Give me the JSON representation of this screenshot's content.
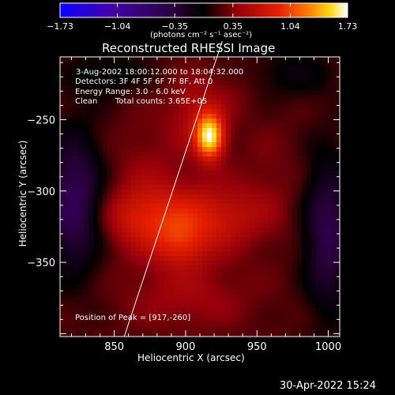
{
  "title": "Reconstructed RHESSI Image",
  "colorbar": {
    "unit_label": "(photons cm⁻² s⁻¹ asec⁻²)",
    "range": [
      -1.73,
      1.73
    ],
    "ticks": [
      "-1.73",
      "-1.04",
      "-0.35",
      "0.35",
      "1.04",
      "1.73"
    ]
  },
  "info": {
    "time_range": "3-Aug-2002 18:00:12.000 to 18:04:32.000",
    "detectors": "Detectors: 3F 4F 5F 6F 7F 8F, Att 0",
    "energy": "Energy Range: 3.0 - 6.0 keV",
    "method": "Clean",
    "counts": "Total counts: 3.65E+05",
    "peak": "Position of Peak = [917,-260]"
  },
  "timestamp": "30-Apr-2022 15:24",
  "chart_data": {
    "type": "heatmap",
    "title": "Reconstructed RHESSI Image",
    "xlabel": "Heliocentric X (arcsec)",
    "ylabel": "Heliocentric Y (arcsec)",
    "xlim": [
      812,
      1008
    ],
    "ylim": [
      -402,
      -206
    ],
    "xticks": [
      850,
      900,
      950,
      1000
    ],
    "yticks": [
      -250,
      -300,
      -350
    ],
    "peak": [
      917,
      -260
    ],
    "limb_line": [
      [
        857,
        -402
      ],
      [
        922,
        -206
      ]
    ],
    "sources": [
      {
        "x": 917,
        "y": -262,
        "sx": 7,
        "sy": 11,
        "amp": 1.35
      },
      {
        "x": 908,
        "y": -245,
        "sx": 14,
        "sy": 18,
        "amp": 0.35
      },
      {
        "x": 893,
        "y": -322,
        "sx": 25,
        "sy": 20,
        "amp": 0.55
      },
      {
        "x": 897,
        "y": -338,
        "sx": 12,
        "sy": 11,
        "amp": 0.3
      },
      {
        "x": 930,
        "y": -318,
        "sx": 22,
        "sy": 15,
        "amp": 0.3
      },
      {
        "x": 862,
        "y": -318,
        "sx": 18,
        "sy": 14,
        "amp": 0.3
      },
      {
        "x": 902,
        "y": -375,
        "sx": 32,
        "sy": 16,
        "amp": 0.25
      },
      {
        "x": 872,
        "y": -280,
        "sx": 18,
        "sy": 26,
        "amp": 0.15
      },
      {
        "x": 958,
        "y": -292,
        "sx": 16,
        "sy": 28,
        "amp": 0.12
      },
      {
        "x": 935,
        "y": -230,
        "sx": 10,
        "sy": 12,
        "amp": 0.1
      },
      {
        "x": 822,
        "y": -308,
        "sx": 14,
        "sy": 34,
        "amp": -0.75
      },
      {
        "x": 1000,
        "y": -330,
        "sx": 12,
        "sy": 38,
        "amp": -0.65
      },
      {
        "x": 975,
        "y": -218,
        "sx": 22,
        "sy": 12,
        "amp": -0.25
      },
      {
        "x": 845,
        "y": -218,
        "sx": 20,
        "sy": 12,
        "amp": -0.25
      }
    ]
  }
}
